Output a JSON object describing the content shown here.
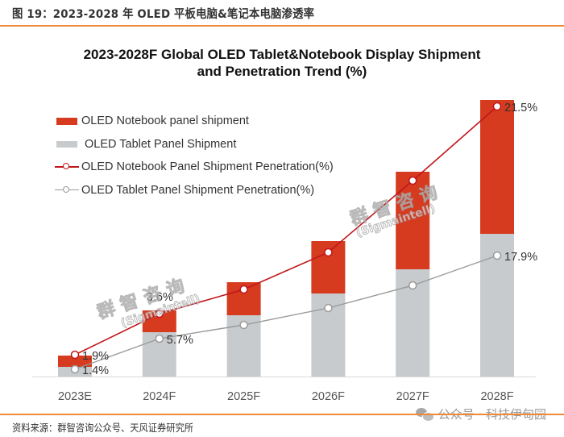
{
  "figure": {
    "title": "图 19：2023-2028 年 OLED 平板电脑&笔记本电脑渗透率",
    "source": "资料来源：群智咨询公众号、天风证券研究所",
    "brand_watermark": "公众号 · 科技伊甸园",
    "chart_watermark_cn": "群智咨询",
    "chart_watermark_en": "(Sigmaintell)"
  },
  "colors": {
    "notebook_bar": "#d63a1f",
    "tablet_bar": "#c8cbcd",
    "notebook_line": "#c0171c",
    "tablet_line": "#9a9a9a",
    "rule": "#ef8a3c"
  },
  "legend": {
    "items": [
      {
        "label": "OLED Notebook panel shipment",
        "type": "bar-red"
      },
      {
        "label": "OLED Tablet Panel Shipment",
        "type": "bar-gray"
      },
      {
        "label": "OLED Notebook Panel Shipment Penetration(%)",
        "type": "line-red"
      },
      {
        "label": "OLED Tablet Panel Shipment Penetration(%)",
        "type": "line-gray"
      }
    ]
  },
  "chart_data": {
    "type": "bar",
    "title": "2023-2028F Global OLED Tablet&Notebook Display Shipment",
    "subtitle": "and Penetration Trend (%)",
    "xlabel": "",
    "ylabel": "",
    "categories": [
      "2023E",
      "2024F",
      "2025F",
      "2026F",
      "2027F",
      "2028F"
    ],
    "stacked": true,
    "grid": false,
    "legend_position": "top-left",
    "series": [
      {
        "name": "OLED Tablet Panel Shipment",
        "kind": "bar",
        "values_relative": [
          12,
          55,
          76,
          103,
          133,
          177
        ]
      },
      {
        "name": "OLED Notebook panel shipment",
        "kind": "bar",
        "values_relative": [
          14,
          27,
          41,
          65,
          121,
          166
        ]
      },
      {
        "name": "OLED Notebook Panel Shipment Penetration(%)",
        "kind": "line",
        "values": [
          1.9,
          3.6,
          6.5,
          10.0,
          15.5,
          21.5
        ],
        "labels": [
          "1.9%",
          "3.6%",
          null,
          null,
          null,
          "21.5%"
        ]
      },
      {
        "name": "OLED Tablet Panel Shipment Penetration(%)",
        "kind": "line",
        "values": [
          1.4,
          5.7,
          8.0,
          10.5,
          13.5,
          17.9
        ],
        "labels": [
          "1.4%",
          "5.7%",
          null,
          null,
          null,
          "17.9%"
        ]
      }
    ],
    "bar_ylim": [
      0,
      360
    ],
    "note": "Bar heights are relative (no y-axis shown); line values for unlabeled years are estimated."
  }
}
